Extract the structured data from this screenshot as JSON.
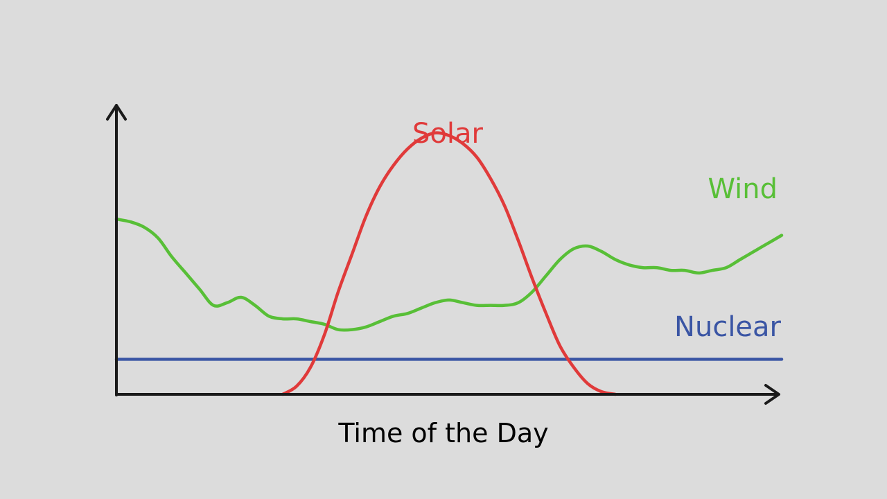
{
  "chart_data": {
    "type": "line",
    "title": "",
    "xlabel": "Time of the Day",
    "ylabel": "",
    "xlim": [
      0,
      24
    ],
    "ylim": [
      0,
      100
    ],
    "grid": false,
    "legend": "none",
    "series": [
      {
        "name": "Solar",
        "color": "#e03a3a",
        "x": [
          6,
          6.5,
          7,
          7.5,
          8,
          8.5,
          9,
          9.5,
          10,
          10.5,
          11,
          11.5,
          12,
          12.5,
          13,
          13.5,
          14,
          14.5,
          15,
          15.5,
          16,
          16.5,
          17,
          17.5,
          18
        ],
        "y": [
          0,
          3,
          10,
          22,
          38,
          52,
          66,
          77,
          85,
          91,
          95,
          97,
          96,
          93,
          88,
          80,
          70,
          57,
          43,
          30,
          18,
          10,
          4,
          1,
          0
        ]
      },
      {
        "name": "Wind",
        "color": "#58bf37",
        "x": [
          0,
          0.5,
          1,
          1.5,
          2,
          2.5,
          3,
          3.5,
          4,
          4.5,
          5,
          5.5,
          6,
          6.5,
          7,
          7.5,
          8,
          8.5,
          9,
          9.5,
          10,
          10.5,
          11,
          11.5,
          12,
          12.5,
          13,
          13.5,
          14,
          14.5,
          15,
          15.5,
          16,
          16.5,
          17,
          17.5,
          18,
          18.5,
          19,
          19.5,
          20,
          20.5,
          21,
          21.5,
          22,
          22.5,
          23,
          23.5,
          24
        ],
        "y": [
          65,
          64,
          62,
          58,
          51,
          45,
          39,
          33,
          34,
          36,
          33,
          29,
          28,
          28,
          27,
          26,
          24,
          24,
          25,
          27,
          29,
          30,
          32,
          34,
          35,
          34,
          33,
          33,
          33,
          34,
          38,
          44,
          50,
          54,
          55,
          53,
          50,
          48,
          47,
          47,
          46,
          46,
          45,
          46,
          47,
          50,
          53,
          56,
          59
        ]
      },
      {
        "name": "Nuclear",
        "color": "#3a55a4",
        "x": [
          0,
          24
        ],
        "y": [
          13,
          13
        ]
      }
    ]
  }
}
